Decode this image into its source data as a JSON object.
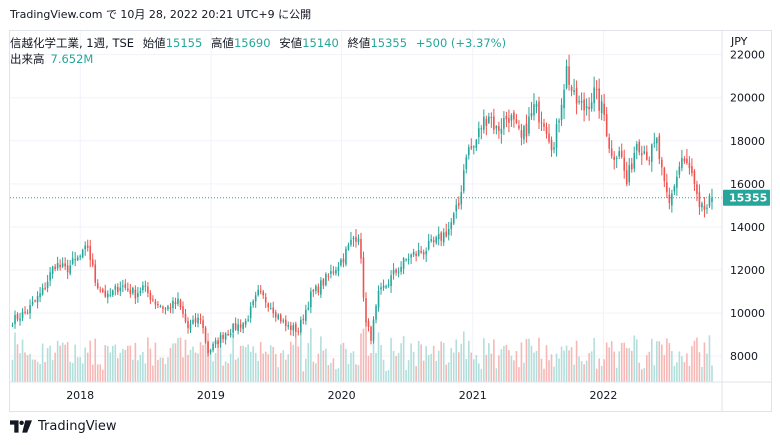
{
  "caption": "TradingView.com で 10月 28, 2022 20:21 UTC+9 に公開",
  "legend": {
    "title": "信越化学工業, 1週, TSE",
    "open_label": "始値",
    "open_value": "15155",
    "high_label": "高値",
    "high_value": "15690",
    "low_label": "安値",
    "low_value": "15140",
    "close_label": "終値",
    "close_value": "15355",
    "change": "+500 (+3.37%)",
    "volume_label": "出来高",
    "volume_value": "7.652M"
  },
  "currency": "JPY",
  "last_price_label": "15355",
  "brand": "TradingView",
  "colors": {
    "up": "#26a69a",
    "down": "#ef5350",
    "up_volume": "#b2dfdb",
    "down_volume": "#f7b7b5",
    "price_line": "#26a69a"
  },
  "chart_data": {
    "type": "candlestick",
    "interval": "1 week",
    "x_ticks": [
      "2018",
      "2019",
      "2020",
      "2021",
      "2022"
    ],
    "y_ticks": [
      8000,
      10000,
      12000,
      14000,
      16000,
      18000,
      20000,
      22000
    ],
    "y_range": [
      6800,
      22400
    ],
    "x_range": [
      "2017-06-19",
      "2022-11-28"
    ],
    "last_close": 15355,
    "price_path": [
      [
        "2017-06-26",
        9650
      ],
      [
        "2017-08-07",
        10100
      ],
      [
        "2017-09-18",
        11000
      ],
      [
        "2017-10-23",
        12300
      ],
      [
        "2017-11-20",
        12000
      ],
      [
        "2018-01-08",
        12700
      ],
      [
        "2018-01-22",
        13100
      ],
      [
        "2018-02-12",
        11500
      ],
      [
        "2018-03-19",
        10700
      ],
      [
        "2018-04-23",
        11300
      ],
      [
        "2018-06-04",
        10900
      ],
      [
        "2018-06-25",
        11200
      ],
      [
        "2018-07-30",
        10500
      ],
      [
        "2018-08-27",
        10200
      ],
      [
        "2018-10-01",
        10500
      ],
      [
        "2018-10-29",
        9300
      ],
      [
        "2018-12-03",
        9800
      ],
      [
        "2018-12-24",
        8200
      ],
      [
        "2019-02-11",
        9100
      ],
      [
        "2019-04-08",
        9600
      ],
      [
        "2019-05-13",
        10900
      ],
      [
        "2019-06-10",
        10500
      ],
      [
        "2019-07-29",
        9400
      ],
      [
        "2019-09-02",
        9200
      ],
      [
        "2019-10-07",
        10800
      ],
      [
        "2019-11-25",
        11700
      ],
      [
        "2020-01-06",
        12600
      ],
      [
        "2020-02-03",
        13500
      ],
      [
        "2020-02-17",
        13700
      ],
      [
        "2020-03-09",
        9500
      ],
      [
        "2020-03-23",
        8900
      ],
      [
        "2020-04-13",
        10800
      ],
      [
        "2020-05-25",
        11800
      ],
      [
        "2020-07-06",
        12600
      ],
      [
        "2020-08-17",
        12900
      ],
      [
        "2020-09-21",
        13300
      ],
      [
        "2020-10-26",
        13900
      ],
      [
        "2020-11-23",
        15000
      ],
      [
        "2020-12-14",
        17500
      ],
      [
        "2021-01-04",
        17700
      ],
      [
        "2021-01-25",
        18700
      ],
      [
        "2021-02-15",
        19300
      ],
      [
        "2021-03-08",
        18500
      ],
      [
        "2021-04-12",
        19200
      ],
      [
        "2021-05-17",
        18000
      ],
      [
        "2021-06-21",
        19500
      ],
      [
        "2021-07-19",
        19000
      ],
      [
        "2021-08-16",
        17600
      ],
      [
        "2021-09-06",
        20000
      ],
      [
        "2021-09-20",
        21300
      ],
      [
        "2021-10-11",
        19900
      ],
      [
        "2021-11-08",
        19500
      ],
      [
        "2021-12-06",
        20200
      ],
      [
        "2022-01-03",
        19200
      ],
      [
        "2022-01-24",
        17200
      ],
      [
        "2022-02-14",
        17700
      ],
      [
        "2022-03-07",
        16000
      ],
      [
        "2022-04-04",
        18000
      ],
      [
        "2022-05-09",
        17300
      ],
      [
        "2022-05-30",
        17900
      ],
      [
        "2022-06-20",
        15800
      ],
      [
        "2022-07-04",
        15000
      ],
      [
        "2022-07-18",
        16000
      ],
      [
        "2022-08-08",
        17200
      ],
      [
        "2022-09-05",
        16400
      ],
      [
        "2022-09-26",
        14700
      ],
      [
        "2022-10-17",
        14900
      ],
      [
        "2022-10-31",
        15355
      ]
    ]
  }
}
